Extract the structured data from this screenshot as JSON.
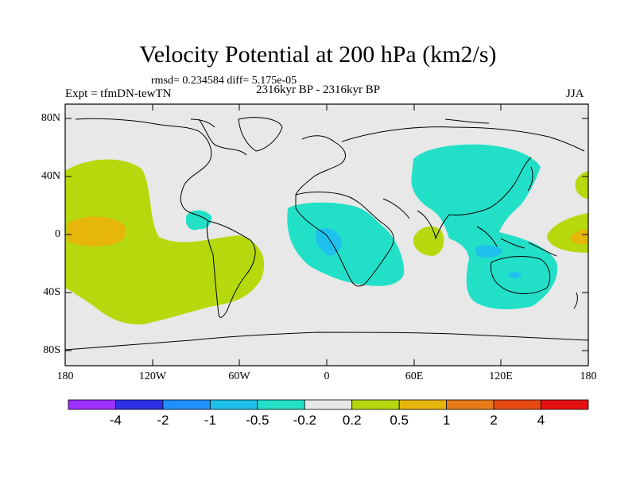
{
  "title": "Velocity Potential at 200 hPa (km2/s)",
  "stats": "rmsd= 0.234584 diff= 5.175e-05",
  "experiment": "Expt = tfmDN-tewTN",
  "period": "2316kyr BP - 2316kyr BP",
  "season": "JJA",
  "y_axis": {
    "labels": [
      "80N",
      "40N",
      "0",
      "40S",
      "80S"
    ]
  },
  "x_axis": {
    "labels": [
      "180",
      "120W",
      "60W",
      "0",
      "60E",
      "120E",
      "180"
    ]
  },
  "colorbar": {
    "labels": [
      "-4",
      "-2",
      "-1",
      "-0.5",
      "-0.2",
      "0.2",
      "0.5",
      "1",
      "2",
      "4"
    ],
    "colors": [
      "#9b30ff",
      "#2f2fe6",
      "#1e90ff",
      "#1ec0ec",
      "#22e0c8",
      "#e8e8e8",
      "#b5d90c",
      "#e6b60a",
      "#e67c18",
      "#e64a10",
      "#e61010"
    ]
  },
  "colors": {
    "positive_weak": "#b5d90c",
    "positive_mid": "#e6b60a",
    "negative_weak": "#22e0c8",
    "negative_mid": "#1ec0ec",
    "neutral": "#e8e8e8"
  }
}
